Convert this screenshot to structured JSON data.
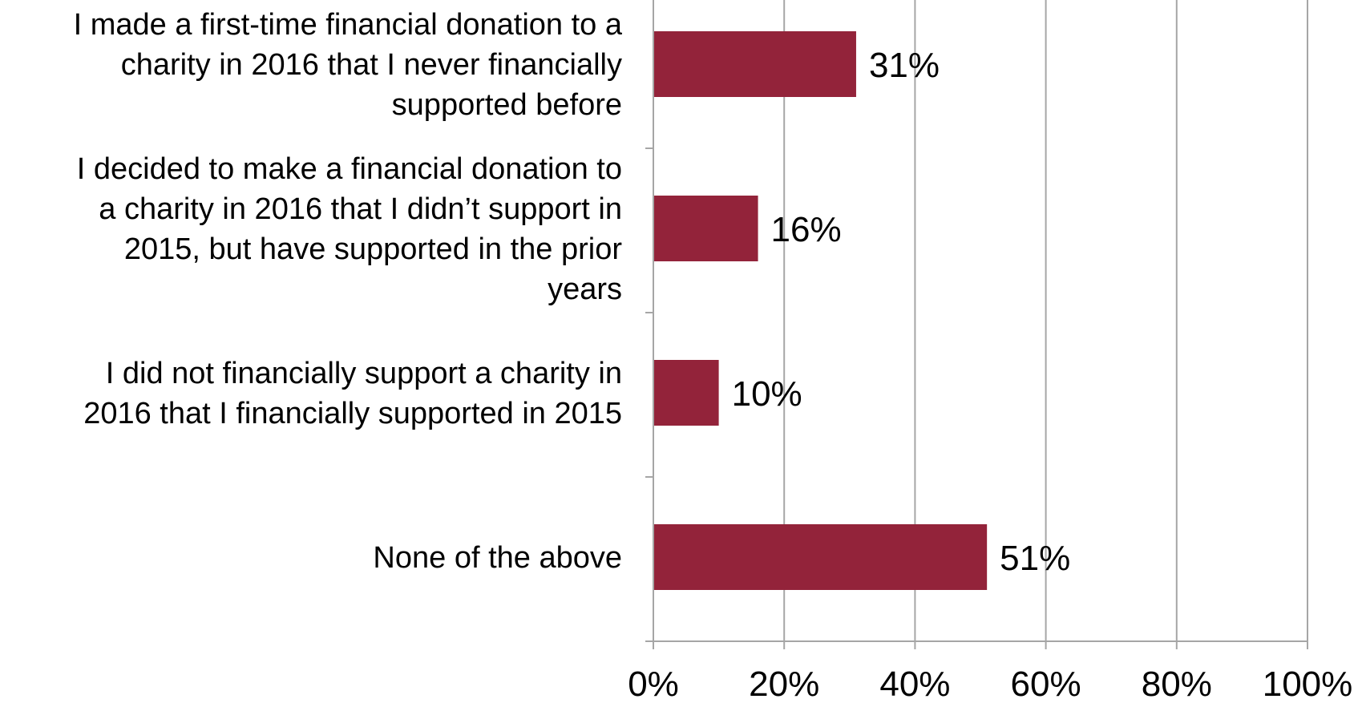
{
  "chart_data": {
    "type": "bar",
    "orientation": "horizontal",
    "title": "",
    "xlabel": "",
    "ylabel": "",
    "categories": [
      "I made a first-time financial donation to a charity in 2016 that I never financially supported before",
      "I decided to make a financial donation to a charity in 2016 that I didn’t support in 2015, but have supported in the prior years",
      "I did not financially support a charity in 2016 that I financially supported in 2015",
      "None of the above"
    ],
    "category_label_lines": [
      [
        "I made a first-time financial donation to a",
        "charity in 2016 that I never financially",
        "supported before"
      ],
      [
        "I decided to make a financial donation to",
        "a charity in 2016 that I didn’t support in",
        "2015, but have supported in the prior",
        "years"
      ],
      [
        "I did not financially support a charity in",
        "2016 that I financially supported in 2015"
      ],
      [
        "None of the above"
      ]
    ],
    "values": [
      31,
      16,
      10,
      51
    ],
    "value_labels": [
      "31%",
      "16%",
      "10%",
      "51%"
    ],
    "xlim": [
      0,
      100
    ],
    "x_ticks": [
      0,
      20,
      40,
      60,
      80,
      100
    ],
    "x_tick_labels": [
      "0%",
      "20%",
      "40%",
      "60%",
      "80%",
      "100%"
    ],
    "grid": true,
    "legend": "none",
    "bar_color": "#93233a",
    "grid_color": "#a6a6a6",
    "axis_color": "#a6a6a6"
  }
}
